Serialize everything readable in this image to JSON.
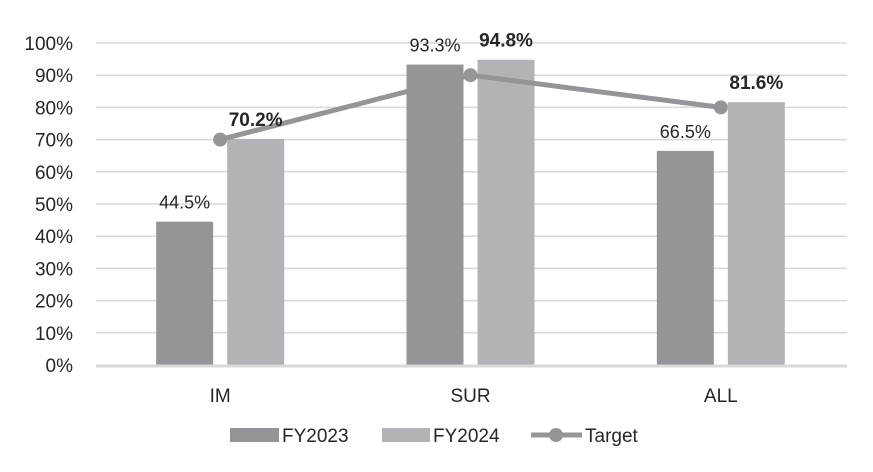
{
  "chart_data": {
    "type": "bar",
    "title": "",
    "xlabel": "",
    "ylabel": "",
    "ylim": [
      0,
      100
    ],
    "y_ticks": [
      "0%",
      "10%",
      "20%",
      "30%",
      "40%",
      "50%",
      "60%",
      "70%",
      "80%",
      "90%",
      "100%"
    ],
    "grid": true,
    "legend_position": "bottom",
    "categories": [
      "IM",
      "SUR",
      "ALL"
    ],
    "series": [
      {
        "name": "FY2023",
        "type": "bar",
        "color": "#939598",
        "values": [
          44.5,
          93.3,
          66.5
        ],
        "labels": [
          "44.5%",
          "93.3%",
          "66.5%"
        ],
        "label_bold": false
      },
      {
        "name": "FY2024",
        "type": "bar",
        "color": "#b2b3b6",
        "values": [
          70.2,
          94.8,
          81.6
        ],
        "labels": [
          "70.2%",
          "94.8%",
          "81.6%"
        ],
        "label_bold": true
      },
      {
        "name": "Target",
        "type": "line",
        "color": "#939598",
        "marker": "circle",
        "values": [
          70,
          90,
          80
        ]
      }
    ]
  },
  "legend": {
    "items": [
      "FY2023",
      "FY2024",
      "Target"
    ]
  }
}
